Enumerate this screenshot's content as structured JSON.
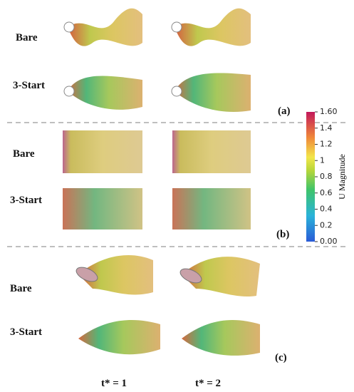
{
  "rows": [
    {
      "panel": "(a)",
      "labels": [
        "Bare",
        "3-Start"
      ]
    },
    {
      "panel": "(b)",
      "labels": [
        "Bare",
        "3-Start"
      ]
    },
    {
      "panel": "(c)",
      "labels": [
        "Bare",
        "3-Start"
      ]
    }
  ],
  "columns": [
    "t* = 1",
    "t* = 2"
  ],
  "colorbar": {
    "title": "U Magnitude",
    "lim": [
      0,
      1.6
    ],
    "ticks": [
      {
        "value": 1.6,
        "label": "1.60"
      },
      1.4,
      1.2,
      1,
      0.8,
      0.6,
      0.4,
      0.2,
      {
        "value": 0,
        "label": "0.00"
      }
    ]
  }
}
